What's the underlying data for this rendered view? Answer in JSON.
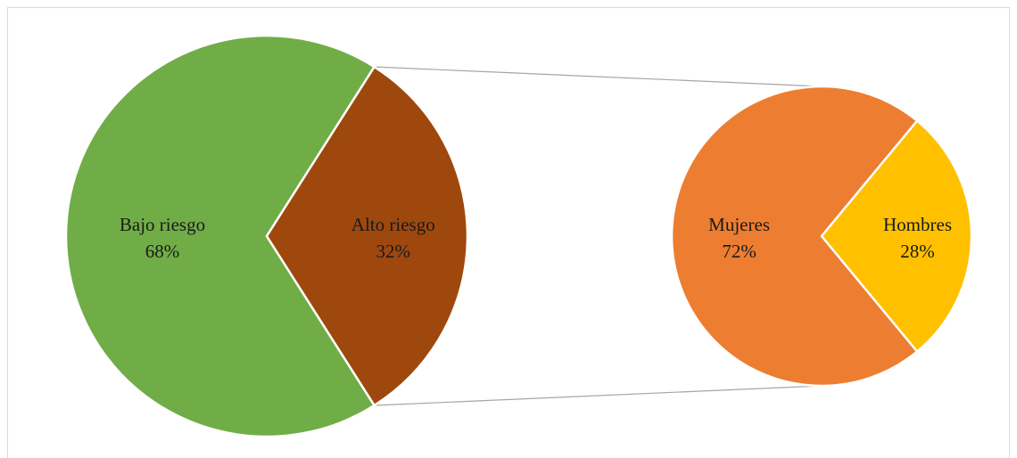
{
  "chart_data": {
    "type": "pie",
    "subtype": "pie-of-pie",
    "main": {
      "slices": [
        {
          "label": "Bajo riesgo",
          "value": 68,
          "value_label": "68%",
          "color": "#70ad47"
        },
        {
          "label": "Alto riesgo",
          "value": 32,
          "value_label": "32%",
          "color": "#9e480e"
        }
      ]
    },
    "breakdown": {
      "of": "Alto riesgo",
      "slices": [
        {
          "label": "Mujeres",
          "value": 72,
          "value_label": "72%",
          "color": "#ed7d31"
        },
        {
          "label": "Hombres",
          "value": 28,
          "value_label": "28%",
          "color": "#ffc000"
        }
      ]
    },
    "connector_color": "#a6a6a6",
    "border_color": "#d9d9d9",
    "legend": "none"
  }
}
